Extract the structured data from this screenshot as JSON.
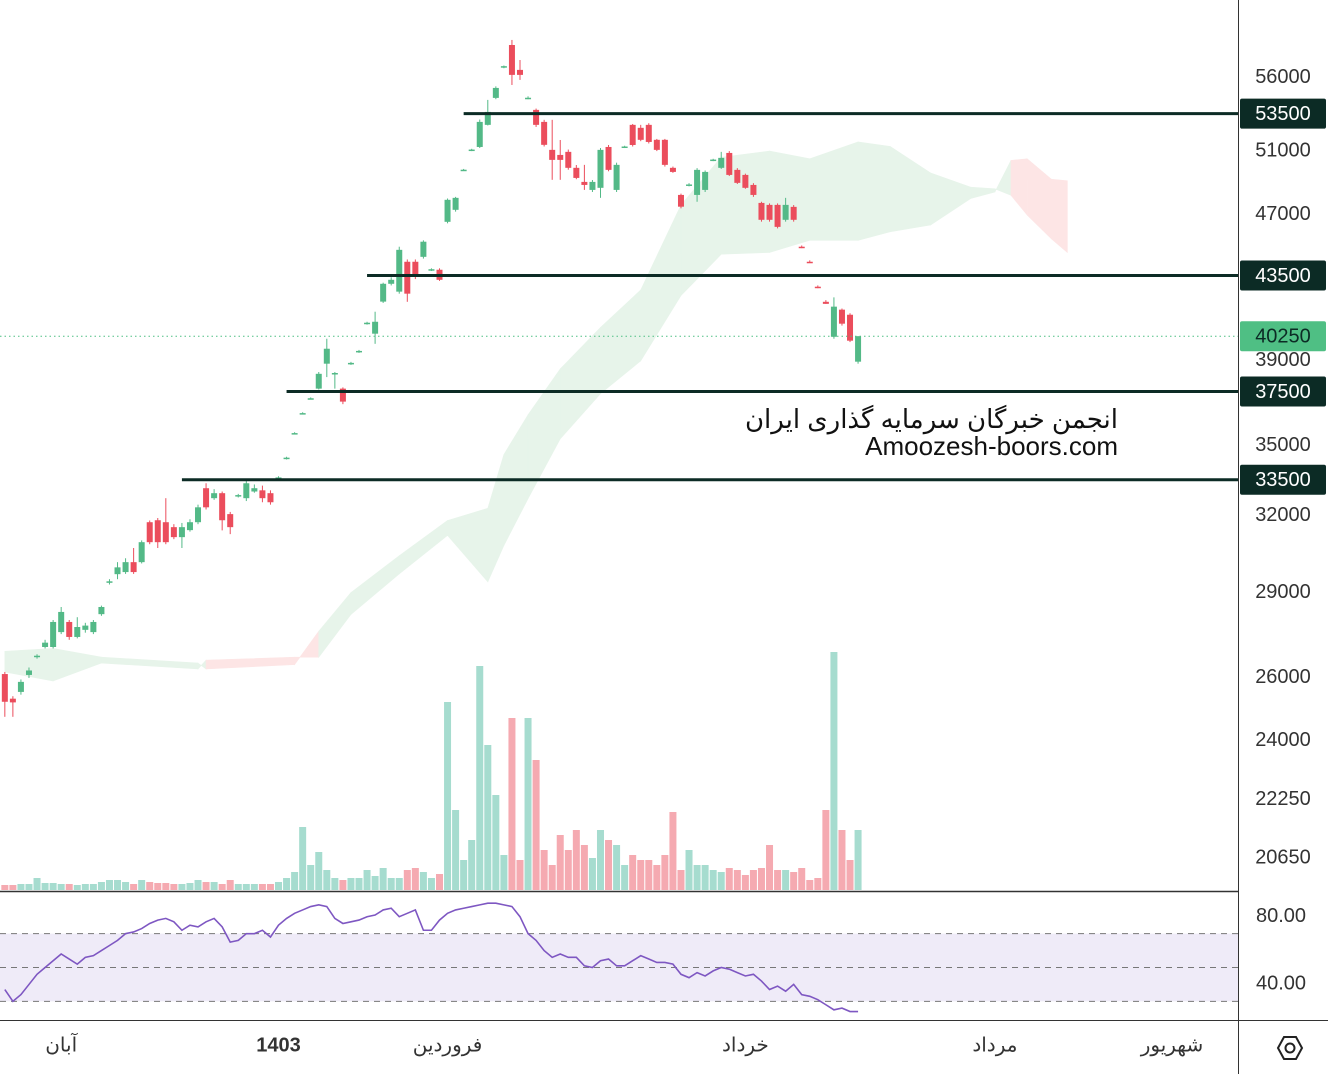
{
  "chart_data": {
    "type": "candlestick",
    "log_scale": true,
    "xlim": [
      -0.6,
      153.2
    ],
    "xticks": [
      {
        "value": 7,
        "label": "آبان"
      },
      {
        "value": 34,
        "label": "1403"
      },
      {
        "value": 55,
        "label": "فروردین"
      },
      {
        "value": 92,
        "label": "خرداد"
      },
      {
        "value": 123,
        "label": "مرداد"
      },
      {
        "value": 145,
        "label": "شهریور"
      }
    ],
    "ylim": [
      19825,
      61870
    ],
    "yticks": [
      56000,
      51000,
      47000,
      39000,
      35000,
      32000,
      29000,
      26000,
      24000,
      22250,
      20650
    ],
    "up_color": "#53b987",
    "down_color": "#eb4d5c",
    "open": [
      26130,
      25320,
      25540,
      26100,
      26700,
      27050,
      27050,
      27570,
      27930,
      27400,
      27650,
      27570,
      28210,
      29390,
      29690,
      29770,
      30150,
      30150,
      31730,
      31810,
      31730,
      31530,
      31130,
      31410,
      31730,
      33140,
      32720,
      32930,
      32060,
      32800,
      32720,
      33000,
      33050,
      32930,
      33560,
      34430,
      35540,
      36460,
      37160,
      37640,
      38860,
      38360,
      37640,
      38860,
      39460,
      40900,
      40380,
      42070,
      43040,
      42610,
      44270,
      44270,
      44550,
      43820,
      43820,
      46590,
      47310,
      49790,
      51080,
      51270,
      52740,
      54590,
      56800,
      58410,
      56580,
      54590,
      53760,
      52940,
      51080,
      50750,
      50950,
      49920,
      49030,
      48530,
      48660,
      51270,
      48530,
      51270,
      52740,
      52540,
      52740,
      51740,
      51740,
      49920,
      48220,
      48840,
      48220,
      48530,
      50430,
      49920,
      50880,
      49790,
      49470,
      48840,
      47730,
      47610,
      47610,
      46710,
      47490,
      45130,
      44270,
      42880,
      42060,
      40220,
      41640,
      41370,
      38960
    ],
    "high": [
      26200,
      25400,
      25950,
      26350,
      26800,
      27300,
      28000,
      28470,
      28000,
      28100,
      27900,
      28000,
      28520,
      29500,
      30150,
      30300,
      30700,
      31000,
      31800,
      31900,
      32720,
      31650,
      31700,
      31850,
      32450,
      33350,
      33100,
      33000,
      32150,
      32900,
      33450,
      33300,
      33250,
      33050,
      33650,
      34500,
      35600,
      36520,
      37220,
      38450,
      40120,
      38450,
      37700,
      38950,
      39550,
      41000,
      41530,
      43100,
      43400,
      45130,
      44400,
      44400,
      45500,
      43900,
      43900,
      48000,
      48100,
      49850,
      51150,
      53100,
      54450,
      55400,
      56900,
      58790,
      57300,
      54700,
      53850,
      53080,
      53080,
      51730,
      51100,
      50100,
      50110,
      49150,
      51200,
      51400,
      50250,
      51350,
      52800,
      52740,
      52850,
      51800,
      51800,
      50000,
      48300,
      48950,
      49900,
      49750,
      50500,
      50950,
      51000,
      49900,
      49550,
      48950,
      47800,
      47700,
      47700,
      48040,
      47600,
      45200,
      44350,
      42950,
      42150,
      42300,
      41700,
      41450,
      40250
    ],
    "low": [
      24740,
      24740,
      25450,
      26000,
      26650,
      27000,
      27000,
      27500,
      27300,
      27350,
      27550,
      27500,
      28150,
      29300,
      29500,
      29700,
      29700,
      30100,
      30850,
      30700,
      30850,
      31050,
      30700,
      31350,
      31650,
      32250,
      32650,
      31400,
      31250,
      32750,
      32600,
      32950,
      32550,
      32450,
      33500,
      34380,
      35500,
      36420,
      37120,
      37600,
      38200,
      37640,
      36900,
      38800,
      39400,
      40850,
      39860,
      42000,
      42950,
      42500,
      42060,
      43300,
      44450,
      43750,
      43200,
      46500,
      47200,
      49750,
      51000,
      51200,
      52700,
      54500,
      56700,
      55500,
      55860,
      54500,
      52600,
      51300,
      49160,
      49160,
      49800,
      49200,
      48530,
      48400,
      48040,
      49700,
      48400,
      51200,
      51300,
      51650,
      51500,
      51000,
      50000,
      49600,
      47400,
      48750,
      47800,
      48400,
      50350,
      49850,
      49400,
      48900,
      48600,
      48100,
      46600,
      46600,
      46200,
      46600,
      46600,
      45050,
      44200,
      42800,
      41950,
      40120,
      40800,
      39950,
      38860
    ],
    "close": [
      25220,
      25200,
      25870,
      26250,
      26750,
      27200,
      27930,
      28290,
      27400,
      27750,
      27800,
      27930,
      28470,
      29420,
      29950,
      30150,
      29770,
      30930,
      30930,
      30930,
      30930,
      31130,
      31530,
      31730,
      32340,
      32340,
      32930,
      31810,
      31530,
      32850,
      33350,
      33140,
      32720,
      32550,
      33600,
      34460,
      35560,
      36480,
      37180,
      38360,
      39610,
      38400,
      37020,
      38900,
      39500,
      40950,
      41000,
      43040,
      43260,
      44950,
      42500,
      43430,
      45420,
      43850,
      43260,
      47920,
      48040,
      49800,
      51100,
      52940,
      53620,
      55290,
      56850,
      56220,
      56220,
      54600,
      52740,
      51410,
      50430,
      50430,
      49920,
      49280,
      48840,
      49030,
      51080,
      49790,
      50110,
      51300,
      51400,
      51740,
      51600,
      51080,
      50110,
      49660,
      47500,
      48870,
      49790,
      49660,
      50450,
      50560,
      49470,
      48970,
      48660,
      48220,
      46710,
      46710,
      46290,
      47610,
      46710,
      45100,
      44250,
      42850,
      41950,
      41800,
      40900,
      40020,
      40250
    ],
    "volume_lim": [
      0,
      300
    ],
    "volume": [
      5,
      5,
      6,
      6,
      12,
      7,
      7,
      6,
      6,
      5,
      6,
      6,
      8,
      10,
      10,
      8,
      6,
      10,
      8,
      7,
      7,
      6,
      6,
      7,
      10,
      8,
      8,
      6,
      10,
      6,
      6,
      6,
      6,
      6,
      8,
      12,
      18,
      63,
      25,
      38,
      20,
      12,
      10,
      12,
      12,
      20,
      14,
      22,
      12,
      12,
      20,
      22,
      18,
      12,
      16,
      188,
      80,
      30,
      50,
      224,
      145,
      95,
      35,
      172,
      30,
      172,
      130,
      40,
      25,
      55,
      40,
      60,
      45,
      32,
      60,
      50,
      45,
      25,
      35,
      30,
      30,
      25,
      35,
      78,
      20,
      40,
      25,
      25,
      20,
      18,
      22,
      20,
      15,
      20,
      22,
      45,
      20,
      20,
      18,
      22,
      10,
      12,
      80,
      238,
      60,
      30,
      60
    ],
    "volume_up_color": "#a6dccf",
    "volume_down_color": "#f5aab1",
    "cloud": {
      "x": [
        0,
        6,
        12,
        24,
        25,
        36,
        39,
        43,
        49,
        55,
        60,
        62,
        65,
        69,
        74,
        79,
        84,
        89,
        95,
        100,
        106,
        110,
        115,
        120,
        123,
        125,
        127,
        130,
        132
      ],
      "span_a": [
        26900,
        27000,
        26700,
        26500,
        26300,
        26450,
        27600,
        29000,
        30400,
        31800,
        32300,
        34600,
        36400,
        38600,
        40700,
        42700,
        47600,
        50600,
        51000,
        50500,
        51600,
        51300,
        49600,
        48700,
        48600,
        48200,
        47000,
        45600,
        44800
      ],
      "span_b": [
        26200,
        25900,
        26500,
        26300,
        26600,
        26700,
        26700,
        28200,
        29700,
        31200,
        29400,
        30800,
        32700,
        35300,
        37400,
        39000,
        42400,
        44700,
        44800,
        45500,
        45500,
        46000,
        46400,
        48000,
        48400,
        50400,
        50500,
        49200,
        49100
      ],
      "up_color": "#e7f4ea",
      "down_color": "#fde5e5"
    },
    "levels": [
      {
        "value": 53500,
        "from": 57
      },
      {
        "value": 43500,
        "from": 45
      },
      {
        "value": 37500,
        "from": 35
      },
      {
        "value": 33500,
        "from": 22
      }
    ],
    "level_color": "#0c2b25",
    "last_price": {
      "value": 40250,
      "color": "#4fbf84"
    },
    "watermark": [
      "انجمن خبرگان سرمایه گذاری ایران",
      "Amoozesh-boors.com"
    ],
    "rsi": {
      "values": [
        37,
        30,
        34,
        40,
        46,
        50,
        54,
        58,
        55,
        52,
        56,
        57,
        60,
        63,
        66,
        70,
        71,
        73,
        76,
        78,
        79,
        77,
        72,
        75,
        74,
        77,
        79,
        74,
        65,
        66,
        70,
        70,
        72,
        68,
        75,
        79,
        82,
        84,
        86,
        87,
        86,
        79,
        76,
        77,
        78,
        80,
        81,
        84,
        85,
        80,
        82,
        84,
        72,
        72,
        78,
        82,
        84,
        85,
        86,
        87,
        88,
        88,
        87,
        86,
        80,
        70,
        66,
        60,
        56,
        58,
        56,
        56,
        51,
        50,
        54,
        55,
        51,
        51,
        54,
        57,
        55,
        53,
        53,
        52,
        46,
        44,
        47,
        45,
        48,
        50,
        49,
        47,
        45,
        46,
        42,
        37,
        39,
        36,
        40,
        34,
        33,
        31,
        28,
        25,
        26,
        24,
        24
      ],
      "ylim": [
        19,
        94
      ],
      "yticks": [
        {
          "value": 80,
          "label": "80.00"
        },
        {
          "value": 40,
          "label": "40.00"
        }
      ],
      "levels": [
        70,
        50,
        30
      ],
      "color": "#7e57c2",
      "band_color": "#efebf8"
    }
  }
}
